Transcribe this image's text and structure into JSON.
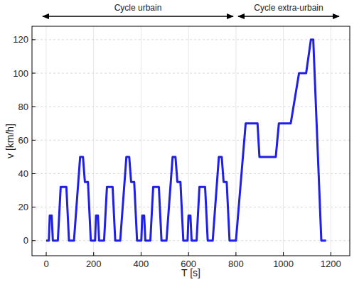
{
  "chart_data": {
    "type": "line",
    "x_label": "T [s]",
    "y_label": "v [km/h]",
    "annotations": [
      "Cycle urbain",
      "Cycle extra-urbain"
    ],
    "x": [
      0,
      11,
      15,
      23,
      28,
      49,
      61,
      85,
      96,
      117,
      143,
      155,
      163,
      176,
      188,
      195,
      206,
      210,
      218,
      223,
      244,
      256,
      280,
      291,
      312,
      338,
      350,
      358,
      371,
      383,
      390,
      401,
      405,
      413,
      418,
      439,
      451,
      475,
      486,
      507,
      533,
      545,
      553,
      566,
      578,
      585,
      596,
      600,
      608,
      613,
      634,
      646,
      670,
      681,
      702,
      728,
      740,
      748,
      761,
      773,
      780,
      800,
      841,
      891,
      899,
      968,
      981,
      1031,
      1066,
      1096,
      1116,
      1126,
      1160,
      1180
    ],
    "values": [
      0,
      0,
      15,
      15,
      0,
      0,
      32,
      32,
      0,
      0,
      50,
      50,
      35,
      35,
      0,
      0,
      0,
      15,
      15,
      0,
      0,
      32,
      32,
      0,
      0,
      50,
      50,
      35,
      35,
      0,
      0,
      0,
      15,
      15,
      0,
      0,
      32,
      32,
      0,
      0,
      50,
      50,
      35,
      35,
      0,
      0,
      0,
      15,
      15,
      0,
      0,
      32,
      32,
      0,
      0,
      50,
      50,
      35,
      35,
      0,
      0,
      0,
      70,
      70,
      50,
      50,
      70,
      70,
      100,
      100,
      120,
      120,
      0,
      0
    ],
    "color": "#1f1fe6",
    "xlim": [
      -60,
      1280
    ],
    "ylim": [
      -9,
      128
    ],
    "xticks": [
      0,
      200,
      400,
      600,
      800,
      1000,
      1200
    ],
    "yticks": [
      0,
      20,
      40,
      60,
      80,
      100,
      120
    ],
    "grid": true
  }
}
